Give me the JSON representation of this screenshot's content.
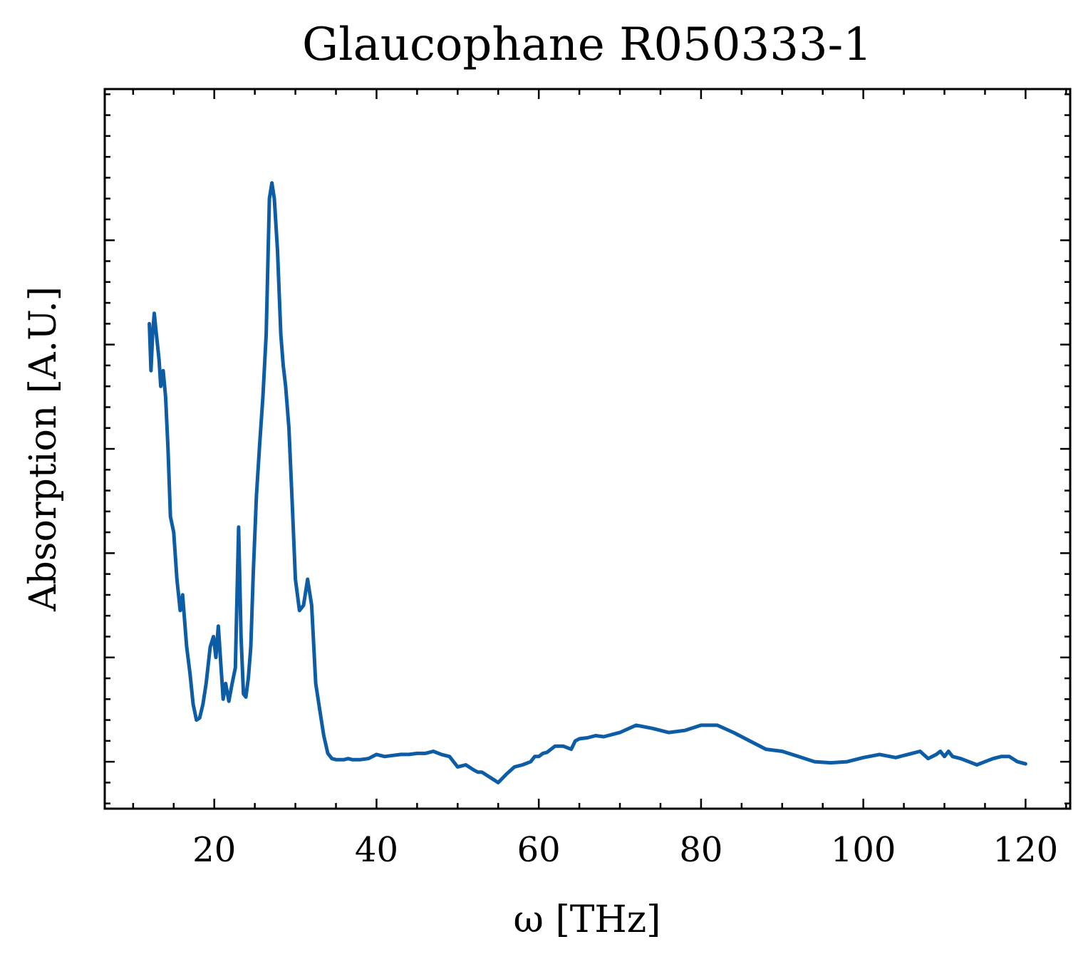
{
  "chart_data": {
    "type": "line",
    "title": "Glaucophane R050333-1",
    "xlabel": "ω [THz]",
    "ylabel": "Absorption [A.U.]",
    "xlim": [
      6.5,
      125.5
    ],
    "ylim": [
      -0.45,
      6.45
    ],
    "x_ticks": [
      20,
      40,
      60,
      80,
      100,
      120
    ],
    "x_tick_labels": [
      "20",
      "40",
      "60",
      "80",
      "100",
      "120"
    ],
    "y_ticks": [
      0,
      1,
      2,
      3,
      4,
      5
    ],
    "y_tick_labels": [
      "",
      "",
      "",
      "",
      "",
      ""
    ],
    "y_minor_step": 0.2,
    "x_minor_step": 5,
    "grid": false,
    "line_color": "#0C5DA5",
    "series": [
      {
        "x": [
          12.0,
          12.2,
          12.4,
          12.6,
          12.8,
          13.0,
          13.2,
          13.4,
          13.7,
          14.0,
          14.3,
          14.6,
          15.0,
          15.4,
          15.8,
          16.1,
          16.4,
          16.6,
          17.0,
          17.4,
          17.8,
          18.2,
          18.6,
          19.0,
          19.5,
          19.9,
          20.2,
          20.5,
          20.8,
          21.1,
          21.4,
          21.8,
          22.2,
          22.6,
          23.0,
          23.3,
          23.6,
          23.9,
          24.2,
          24.5,
          24.8,
          25.2,
          25.6,
          26.0,
          26.4,
          26.8,
          27.1,
          27.4,
          27.8,
          28.2,
          28.5,
          28.8,
          29.2,
          29.6,
          30.0,
          30.5,
          31.0,
          31.5,
          32.0,
          32.5,
          33.0,
          33.5,
          34.0,
          34.5,
          35.0,
          35.5,
          36.0,
          36.5,
          37.0,
          38.0,
          39.0,
          40.0,
          41.0,
          42.0,
          43.0,
          44.0,
          45.0,
          46.0,
          47.0,
          48.0,
          49.0,
          50.0,
          51.0,
          52.0,
          52.5,
          53.0,
          54.0,
          55.0,
          56.0,
          57.0,
          58.0,
          59.0,
          59.5,
          60.0,
          60.5,
          61.0,
          62.0,
          63.0,
          64.0,
          64.5,
          65.0,
          66.0,
          67.0,
          68.0,
          70.0,
          72.0,
          74.0,
          76.0,
          78.0,
          80.0,
          82.0,
          84.0,
          86.0,
          88.0,
          90.0,
          92.0,
          94.0,
          96.0,
          98.0,
          100.0,
          102.0,
          104.0,
          106.0,
          107.0,
          108.0,
          109.0,
          109.5,
          110.0,
          110.5,
          111.0,
          112.0,
          113.0,
          114.0,
          115.0,
          116.0,
          117.0,
          118.0,
          119.0,
          120.0
        ],
        "y": [
          4.2,
          3.75,
          4.1,
          4.3,
          4.15,
          4.0,
          3.85,
          3.6,
          3.75,
          3.5,
          3.0,
          2.35,
          2.2,
          1.75,
          1.45,
          1.6,
          1.3,
          1.1,
          0.85,
          0.55,
          0.4,
          0.42,
          0.55,
          0.75,
          1.1,
          1.2,
          1.0,
          1.3,
          0.95,
          0.6,
          0.75,
          0.58,
          0.75,
          0.9,
          2.25,
          1.2,
          0.65,
          0.62,
          0.8,
          1.1,
          1.8,
          2.55,
          3.05,
          3.5,
          4.1,
          5.4,
          5.55,
          5.4,
          4.9,
          4.1,
          3.8,
          3.6,
          3.2,
          2.5,
          1.75,
          1.45,
          1.5,
          1.75,
          1.5,
          0.75,
          0.5,
          0.25,
          0.08,
          0.03,
          0.02,
          0.02,
          0.02,
          0.03,
          0.02,
          0.02,
          0.03,
          0.07,
          0.05,
          0.06,
          0.07,
          0.07,
          0.08,
          0.08,
          0.1,
          0.07,
          0.05,
          -0.05,
          -0.03,
          -0.08,
          -0.1,
          -0.1,
          -0.15,
          -0.2,
          -0.12,
          -0.05,
          -0.03,
          0.0,
          0.05,
          0.05,
          0.08,
          0.09,
          0.15,
          0.15,
          0.12,
          0.2,
          0.22,
          0.23,
          0.25,
          0.24,
          0.28,
          0.35,
          0.32,
          0.28,
          0.3,
          0.35,
          0.35,
          0.28,
          0.2,
          0.12,
          0.1,
          0.05,
          0.0,
          -0.01,
          0.0,
          0.04,
          0.07,
          0.04,
          0.08,
          0.1,
          0.03,
          0.07,
          0.1,
          0.05,
          0.1,
          0.05,
          0.03,
          0.0,
          -0.03,
          0.0,
          0.03,
          0.05,
          0.05,
          0.0,
          -0.02
        ]
      }
    ]
  }
}
